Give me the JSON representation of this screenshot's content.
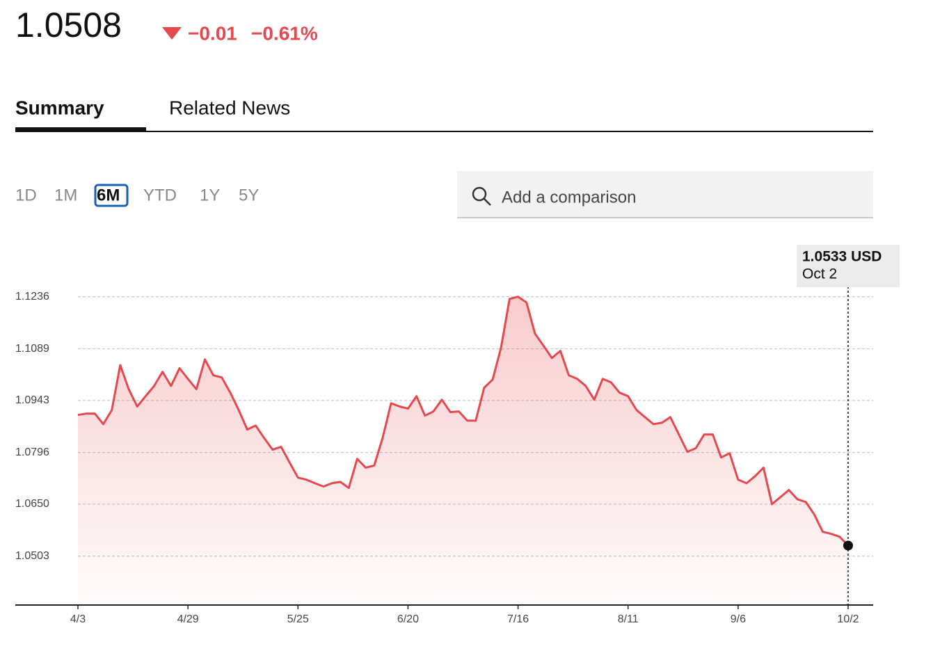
{
  "quote": {
    "price": "1.0508",
    "change": "−0.01",
    "change_percent": "−0.61%"
  },
  "tabs": {
    "items": [
      "Summary",
      "Related News"
    ],
    "selected": 0
  },
  "ranges": {
    "items": [
      "1D",
      "1M",
      "6M",
      "YTD",
      "1Y",
      "5Y"
    ],
    "selected": 2
  },
  "search": {
    "placeholder": "Add a comparison"
  },
  "chart_data": {
    "type": "area",
    "color": "#e5484d",
    "categories": [
      "4/3",
      null,
      null,
      null,
      null,
      null,
      null,
      null,
      null,
      null,
      null,
      null,
      null,
      "4/29",
      null,
      null,
      null,
      null,
      null,
      null,
      null,
      null,
      null,
      null,
      null,
      null,
      "5/25",
      null,
      null,
      null,
      null,
      null,
      null,
      null,
      null,
      null,
      null,
      null,
      null,
      "6/20",
      null,
      null,
      null,
      null,
      null,
      null,
      null,
      null,
      null,
      null,
      null,
      null,
      "7/16",
      null,
      null,
      null,
      null,
      null,
      null,
      null,
      null,
      null,
      null,
      null,
      null,
      "8/11",
      null,
      null,
      null,
      null,
      null,
      null,
      null,
      null,
      null,
      null,
      null,
      null,
      "9/6",
      null,
      null,
      null,
      null,
      null,
      null,
      null,
      null,
      null,
      null,
      null,
      null,
      "10/2"
    ],
    "values": [
      1.0902,
      1.0906,
      1.0906,
      1.0876,
      1.0916,
      1.1043,
      1.0975,
      1.0926,
      1.0955,
      1.0984,
      1.1024,
      1.0984,
      1.1034,
      1.1004,
      1.0975,
      1.1059,
      1.1014,
      1.1008,
      1.0965,
      1.0916,
      1.0861,
      1.0872,
      1.0837,
      1.0804,
      1.0812,
      1.0768,
      1.0725,
      1.0719,
      1.0709,
      1.07,
      1.0709,
      1.0713,
      1.0696,
      1.0778,
      1.0753,
      1.0759,
      1.0837,
      1.0935,
      1.0926,
      1.092,
      1.0955,
      1.09,
      1.0912,
      1.0945,
      1.091,
      1.0912,
      1.0886,
      1.0886,
      1.0979,
      1.1002,
      1.1093,
      1.123,
      1.1236,
      1.122,
      1.1132,
      1.1098,
      1.1063,
      1.1083,
      1.1014,
      1.1004,
      1.0984,
      1.0945,
      1.1004,
      1.0994,
      1.0965,
      1.0955,
      1.0916,
      1.0896,
      1.0876,
      1.088,
      1.0896,
      1.0847,
      1.0798,
      1.0808,
      1.0847,
      1.0847,
      1.0782,
      1.0794,
      1.0719,
      1.0709,
      1.0729,
      1.0753,
      1.065,
      1.067,
      1.069,
      1.0664,
      1.0656,
      1.0621,
      1.0572,
      1.0566,
      1.0558,
      1.0533
    ],
    "ylim": [
      1.0365,
      1.1375
    ],
    "yticks": [
      1.0503,
      {
        "value": 1.065,
        "label": "1.0650"
      },
      1.0796,
      1.0943,
      1.1089,
      1.1236
    ],
    "grid": true,
    "tooltip": {
      "label": "1.0533 USD",
      "date": "Oct 2"
    }
  }
}
